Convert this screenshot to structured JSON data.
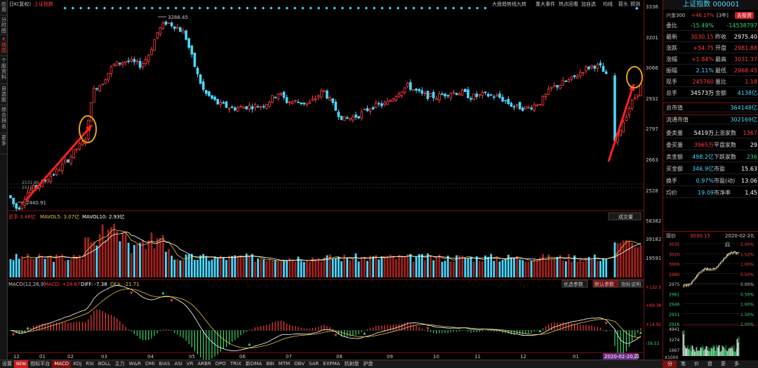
{
  "left_tabs": [
    "应用",
    "分时图",
    "K线图",
    "个股资料",
    "自选股",
    "综合排名",
    "更多"
  ],
  "header": {
    "period": "日K(复权)",
    "index_label": "上证指数",
    "toolbar": [
      "大盘趋势线九转",
      "重大事件",
      "热点回看",
      "加自选",
      "均线",
      "箭头",
      "预测"
    ]
  },
  "price_axis": [
    "3336",
    "3201",
    "3066",
    "2932",
    "2797",
    "2663",
    "2528"
  ],
  "volume_axis": [
    "58382",
    "39182",
    "19591"
  ],
  "macd_axis": [
    "+122.5",
    "+69.38",
    "+14.92",
    "-39.53"
  ],
  "date_axis": [
    "12",
    "01",
    "02",
    "03",
    "04",
    "05",
    "06",
    "07",
    "08",
    "09",
    "10",
    "11",
    "12",
    "01"
  ],
  "current_date_badge": "2020-02-20,四",
  "annotations": {
    "high": "3288.45",
    "low": "2440.91",
    "gap1": "2531.86",
    "gap2": "2515.51"
  },
  "volume_header": {
    "total": "总手 3.46亿",
    "ma5": "MAVOL5: 3.07亿",
    "ma10": "MAVOL10: 2.93亿",
    "btn": "成交量"
  },
  "macd_header": {
    "label": "MACD(12,26,9)",
    "macd": "MACD: +28.67",
    "diff": "DIFF: -7.38",
    "dea": "DEA: -21.71",
    "btn1": "优选参数",
    "btn2": "默认参数",
    "btn3": "指标说明"
  },
  "bottom_tabs": [
    "设置",
    "NEW",
    "指标平台",
    "MACD",
    "KDJ",
    "RSI",
    "BOLL",
    "主力",
    "W&R",
    "DMI",
    "BIAS",
    "ASI",
    "VR",
    "ARBR",
    "DPO",
    "TRIX",
    "新DMA",
    "BBI",
    "MTM",
    "OBV",
    "SAR",
    "EXPMA",
    "抗射盘",
    "护盘"
  ],
  "panel": {
    "title": "上证指数 000001",
    "top_row": {
      "left": "兴金300",
      "value": "+46.17%",
      "tag": "[3年]",
      "btn": "去投资"
    },
    "rows": [
      {
        "l1": "委比",
        "v1": "-15.49%",
        "c1": "green",
        "l2": "",
        "v2": "-14538797",
        "c2": "green"
      },
      {
        "l1": "最新",
        "v1": "3030.15",
        "c1": "red",
        "l2": "昨收",
        "v2": "2975.40",
        "c2": "white"
      },
      {
        "l1": "涨跌",
        "v1": "+54.75",
        "c1": "red",
        "l2": "开盘",
        "v2": "2981.88",
        "c2": "red"
      },
      {
        "l1": "涨幅",
        "v1": "+1.84%",
        "c1": "red",
        "l2": "最高",
        "v2": "3031.37",
        "c2": "red"
      },
      {
        "l1": "振幅",
        "v1": "2.11%",
        "c1": "cyan",
        "l2": "最低",
        "v2": "2968.45",
        "c2": "red"
      },
      {
        "l1": "现手",
        "v1": "245760",
        "c1": "red",
        "l2": "量比",
        "v2": "1.18",
        "c2": "red"
      },
      {
        "l1": "总手",
        "v1": "34573万",
        "c1": "white",
        "l2": "金额",
        "v2": "4138亿",
        "c2": "cyan"
      }
    ],
    "rows2": [
      {
        "l": "总市值",
        "v": "364148亿",
        "c": "cyan"
      },
      {
        "l": "流通市值",
        "v": "302169亿",
        "c": "cyan"
      }
    ],
    "rows3": [
      {
        "l1": "委卖量",
        "v1": "5419万",
        "c1": "white",
        "l2": "上涨家数",
        "v2": "1367",
        "c2": "red"
      },
      {
        "l1": "委买量",
        "v1": "3965万",
        "c1": "red",
        "l2": "平盘家数",
        "v2": "29",
        "c2": "white"
      },
      {
        "l1": "卖金额",
        "v1": "498.2亿",
        "c1": "cyan",
        "l2": "下跌家数",
        "v2": "236",
        "c2": "green"
      },
      {
        "l1": "买金额",
        "v1": "346.9亿",
        "c1": "cyan",
        "l2": "市盈",
        "v2": "15.63",
        "c2": "white"
      },
      {
        "l1": "换手",
        "v1": "0.97%",
        "c1": "cyan",
        "l2": "市盈(动)",
        "v2": "13.06",
        "c2": "white"
      },
      {
        "l1": "均价",
        "v1": "19.09",
        "c1": "cyan",
        "l2": "市净率",
        "v2": "1.45",
        "c2": "white"
      }
    ],
    "now": {
      "label": "现价",
      "value": "3030.15",
      "date": "2020-02-20,四"
    },
    "mini_left_axis": [
      "3035",
      "3020",
      "3006",
      "2990",
      "2975",
      "2961",
      "2946",
      "2931",
      "2916"
    ],
    "mini_right_axis": [
      "2.00%",
      "1.52%",
      "1.00%",
      "0.50%",
      "0.00%",
      "0.50%",
      "1.00%",
      "1.50%",
      "2.00%"
    ],
    "mini_vol_axis": [
      "4941",
      "3274",
      "1667"
    ],
    "mini_vol_unit": "X1000",
    "bottom_tabs": [
      "分",
      "笔",
      "价",
      "盘",
      "更",
      "多"
    ]
  },
  "colors": {
    "up": "#ff3c3c",
    "down": "#4ad7ff",
    "ma": "#ffffff",
    "highlight": "#e8a317"
  }
}
